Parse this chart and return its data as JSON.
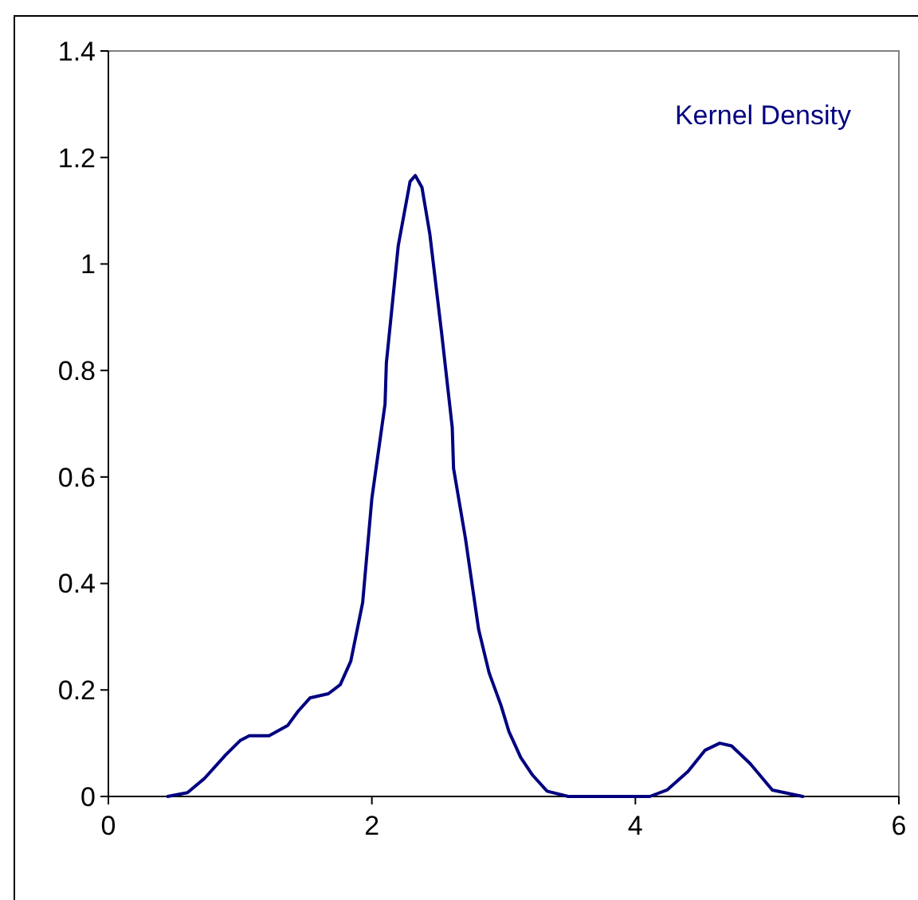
{
  "chart_data": {
    "type": "line",
    "xlim": [
      0,
      6
    ],
    "xticks": [
      0,
      2,
      4,
      6
    ],
    "ylim": [
      0,
      1.4
    ],
    "yticks": [
      0,
      0.2,
      0.4,
      0.6,
      0.8,
      1,
      1.2,
      1.4
    ],
    "grid": false,
    "legend": "top right",
    "marker": "none",
    "line_style": "solid",
    "series": [
      {
        "name": "Kernel Density",
        "color": "#000080",
        "x": [
          0.45,
          0.6,
          0.73,
          0.89,
          1.0,
          1.07,
          1.22,
          1.36,
          1.44,
          1.53,
          1.67,
          1.76,
          1.84,
          1.93,
          2.0,
          2.1,
          2.11,
          2.2,
          2.29,
          2.33,
          2.38,
          2.44,
          2.53,
          2.61,
          2.62,
          2.71,
          2.81,
          2.89,
          2.98,
          3.04,
          3.13,
          3.22,
          3.33,
          3.49,
          4.11,
          4.24,
          4.4,
          4.53,
          4.64,
          4.73,
          4.87,
          5.04,
          5.27
        ],
        "values": [
          0,
          0.007,
          0.034,
          0.078,
          0.105,
          0.114,
          0.114,
          0.133,
          0.16,
          0.185,
          0.193,
          0.21,
          0.254,
          0.364,
          0.56,
          0.737,
          0.814,
          1.034,
          1.155,
          1.166,
          1.144,
          1.056,
          0.869,
          0.693,
          0.616,
          0.485,
          0.314,
          0.232,
          0.171,
          0.122,
          0.073,
          0.04,
          0.01,
          0,
          0,
          0.012,
          0.047,
          0.087,
          0.1,
          0.095,
          0.062,
          0.012,
          0
        ]
      }
    ]
  }
}
